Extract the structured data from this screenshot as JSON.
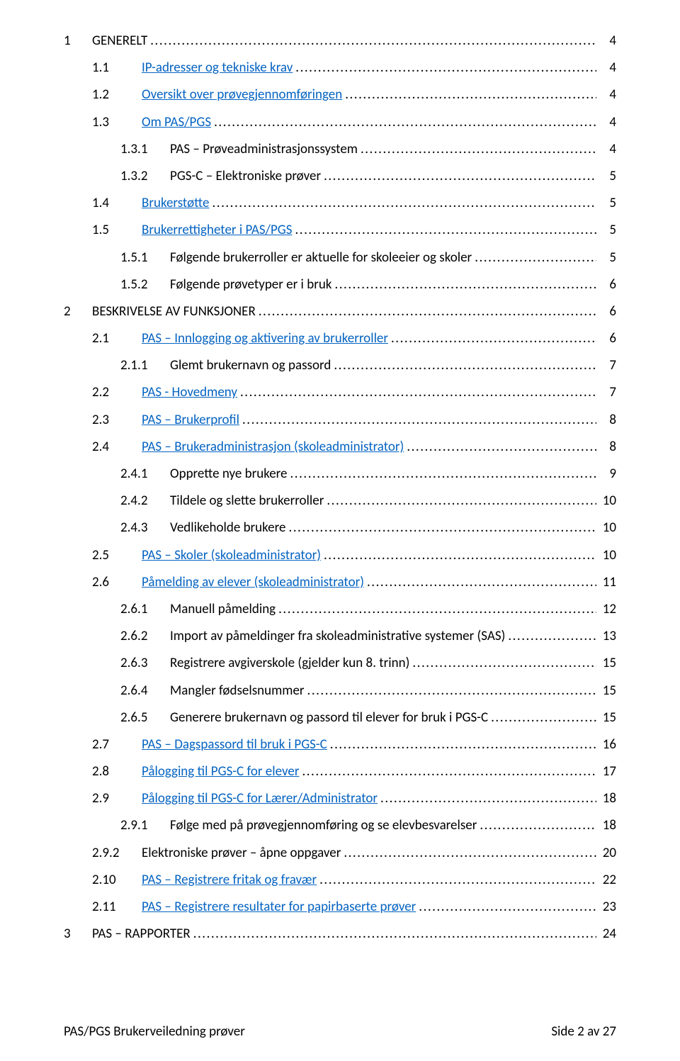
{
  "link_color": "#0563c1",
  "footer": {
    "left": "PAS/PGS Brukerveiledning prøver",
    "right": "Side 2 av 27"
  },
  "toc": [
    {
      "level": 1,
      "num": "1",
      "title": "GENERELT",
      "page": "4",
      "link": false
    },
    {
      "level": 2,
      "num": "1.1",
      "title": "IP-adresser og tekniske krav",
      "page": "4",
      "link": true
    },
    {
      "level": 2,
      "num": "1.2",
      "title": "Oversikt over prøvegjennomføringen",
      "page": "4",
      "link": true
    },
    {
      "level": 2,
      "num": "1.3",
      "title": "Om PAS/PGS",
      "page": "4",
      "link": true
    },
    {
      "level": 3,
      "num": "1.3.1",
      "title": "PAS – Prøveadministrasjonssystem",
      "page": "4",
      "link": false
    },
    {
      "level": 3,
      "num": "1.3.2",
      "title": "PGS-C – Elektroniske prøver",
      "page": "5",
      "link": false
    },
    {
      "level": 2,
      "num": "1.4",
      "title": "Brukerstøtte",
      "page": "5",
      "link": true
    },
    {
      "level": 2,
      "num": "1.5",
      "title": "Brukerrettigheter i PAS/PGS",
      "page": "5",
      "link": true
    },
    {
      "level": 3,
      "num": "1.5.1",
      "title": "Følgende brukerroller er aktuelle for skoleeier og skoler",
      "page": "5",
      "link": false
    },
    {
      "level": 3,
      "num": "1.5.2",
      "title": "Følgende prøvetyper er i bruk",
      "page": "6",
      "link": false
    },
    {
      "level": 1,
      "num": "2",
      "title": "BESKRIVELSE AV FUNKSJONER",
      "page": "6",
      "link": false
    },
    {
      "level": 2,
      "num": "2.1",
      "title": "PAS – Innlogging og aktivering av brukerroller",
      "page": "6",
      "link": true
    },
    {
      "level": 3,
      "num": "2.1.1",
      "title": "Glemt brukernavn og passord",
      "page": "7",
      "link": false
    },
    {
      "level": 2,
      "num": "2.2",
      "title": "PAS - Hovedmeny",
      "page": "7",
      "link": true
    },
    {
      "level": 2,
      "num": "2.3",
      "title": "PAS – Brukerprofil",
      "page": "8",
      "link": true
    },
    {
      "level": 2,
      "num": "2.4",
      "title": "PAS – Brukeradministrasjon (skoleadministrator)",
      "page": "8",
      "link": true
    },
    {
      "level": 3,
      "num": "2.4.1",
      "title": "Opprette nye brukere",
      "page": "9",
      "link": false
    },
    {
      "level": 3,
      "num": "2.4.2",
      "title": "Tildele og slette brukerroller",
      "page": "10",
      "link": false
    },
    {
      "level": 3,
      "num": "2.4.3",
      "title": "Vedlikeholde brukere",
      "page": "10",
      "link": false
    },
    {
      "level": 2,
      "num": "2.5",
      "title": "PAS – Skoler (skoleadministrator)",
      "page": "10",
      "link": true
    },
    {
      "level": 2,
      "num": "2.6",
      "title": "Påmelding av elever (skoleadministrator)",
      "page": "11",
      "link": true
    },
    {
      "level": 3,
      "num": "2.6.1",
      "title": "Manuell påmelding",
      "page": "12",
      "link": false
    },
    {
      "level": 3,
      "num": "2.6.2",
      "title": "Import av påmeldinger fra skoleadministrative systemer (SAS)",
      "page": "13",
      "link": false
    },
    {
      "level": 3,
      "num": "2.6.3",
      "title": "Registrere avgiverskole (gjelder kun 8. trinn)",
      "page": "15",
      "link": false
    },
    {
      "level": 3,
      "num": "2.6.4",
      "title": "Mangler fødselsnummer",
      "page": "15",
      "link": false
    },
    {
      "level": 3,
      "num": "2.6.5",
      "title": "Generere brukernavn og passord til elever for bruk i PGS-C",
      "page": "15",
      "link": false
    },
    {
      "level": 2,
      "num": "2.7",
      "title": "PAS – Dagspassord til bruk i PGS-C",
      "page": "16",
      "link": true
    },
    {
      "level": 2,
      "num": "2.8",
      "title": "Pålogging til PGS-C for elever",
      "page": "17",
      "link": true
    },
    {
      "level": 2,
      "num": "2.9",
      "title": "Pålogging til PGS-C for Lærer/Administrator",
      "page": "18",
      "link": true
    },
    {
      "level": 3,
      "num": "2.9.1",
      "title": "Følge med på prøvegjennomføring og se elevbesvarelser",
      "page": "18",
      "link": false
    },
    {
      "level": "3b",
      "num": "2.9.2",
      "title": "Elektroniske prøver – åpne oppgaver",
      "page": "20",
      "link": false
    },
    {
      "level": "3b",
      "num": "2.10",
      "title": "PAS – Registrere fritak og fravær",
      "page": "22",
      "link": true
    },
    {
      "level": "3b",
      "num": "2.11",
      "title": "PAS – Registrere resultater for papirbaserte prøver",
      "page": "23",
      "link": true
    },
    {
      "level": 1,
      "num": "3",
      "title": "PAS – RAPPORTER",
      "page": "24",
      "link": false
    }
  ]
}
